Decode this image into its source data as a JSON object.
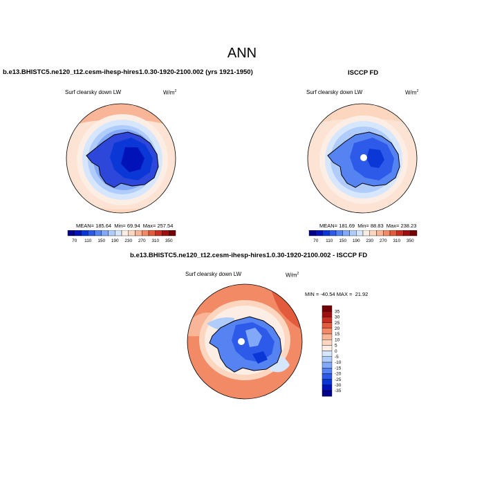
{
  "page": {
    "title": "ANN"
  },
  "colors": {
    "scale": [
      "#00008B",
      "#0013B8",
      "#0A37D6",
      "#2E5AEA",
      "#5683F2",
      "#82A8F8",
      "#B0CCFB",
      "#D6E6FD",
      "#FCEEE4",
      "#FDD6C0",
      "#F9B597",
      "#F38A66",
      "#E35B3D",
      "#C82E22",
      "#9E0F12",
      "#730006"
    ],
    "ocean": "#FDE3D3",
    "land": "#2C47DA",
    "coast": "#000000"
  },
  "chart_data": [
    {
      "type": "heatmap",
      "panel": "model",
      "title": "b.e13.BHISTC5.ne120_t12.cesm-ihesp-hires1.0.30-1920-2100.002 (yrs 1921-1950)",
      "variable": "Surf clearsky down LW",
      "units": "W/m",
      "units_exp": "2",
      "stats": {
        "mean_label": "MEAN=",
        "mean": 185.64,
        "min_label": "Min=",
        "min": 69.94,
        "max_label": "Max=",
        "max": 257.54
      },
      "colorbar_ticks": [
        "70",
        "110",
        "150",
        "190",
        "230",
        "270",
        "310",
        "350"
      ],
      "projection": "south-polar-stereographic"
    },
    {
      "type": "heatmap",
      "panel": "obs",
      "title": "ISCCP FD",
      "variable": "Surf clearsky down LW",
      "units": "W/m",
      "units_exp": "2",
      "stats": {
        "mean_label": "MEAN=",
        "mean": 181.69,
        "min_label": "Min=",
        "min": 88.83,
        "max_label": "Max=",
        "max": 238.23
      },
      "colorbar_ticks": [
        "70",
        "110",
        "150",
        "190",
        "230",
        "270",
        "310",
        "350"
      ],
      "projection": "south-polar-stereographic"
    },
    {
      "type": "heatmap",
      "panel": "difference",
      "title": "b.e13.BHISTC5.ne120_t12.cesm-ihesp-hires1.0.30-1920-2100.002 - ISCCP FD",
      "variable": "Surf clearsky down LW",
      "units": "W/m",
      "units_exp": "2",
      "stats": {
        "min_label": "MIN =",
        "min": -40.54,
        "max_label": "MAX =",
        "max": 21.92
      },
      "colorbar_ticks": [
        "35",
        "30",
        "25",
        "20",
        "15",
        "10",
        "5",
        "0",
        "-5",
        "-10",
        "-15",
        "-20",
        "-25",
        "-30",
        "-35"
      ],
      "colorbar_orientation": "vertical",
      "projection": "south-polar-stereographic"
    }
  ]
}
